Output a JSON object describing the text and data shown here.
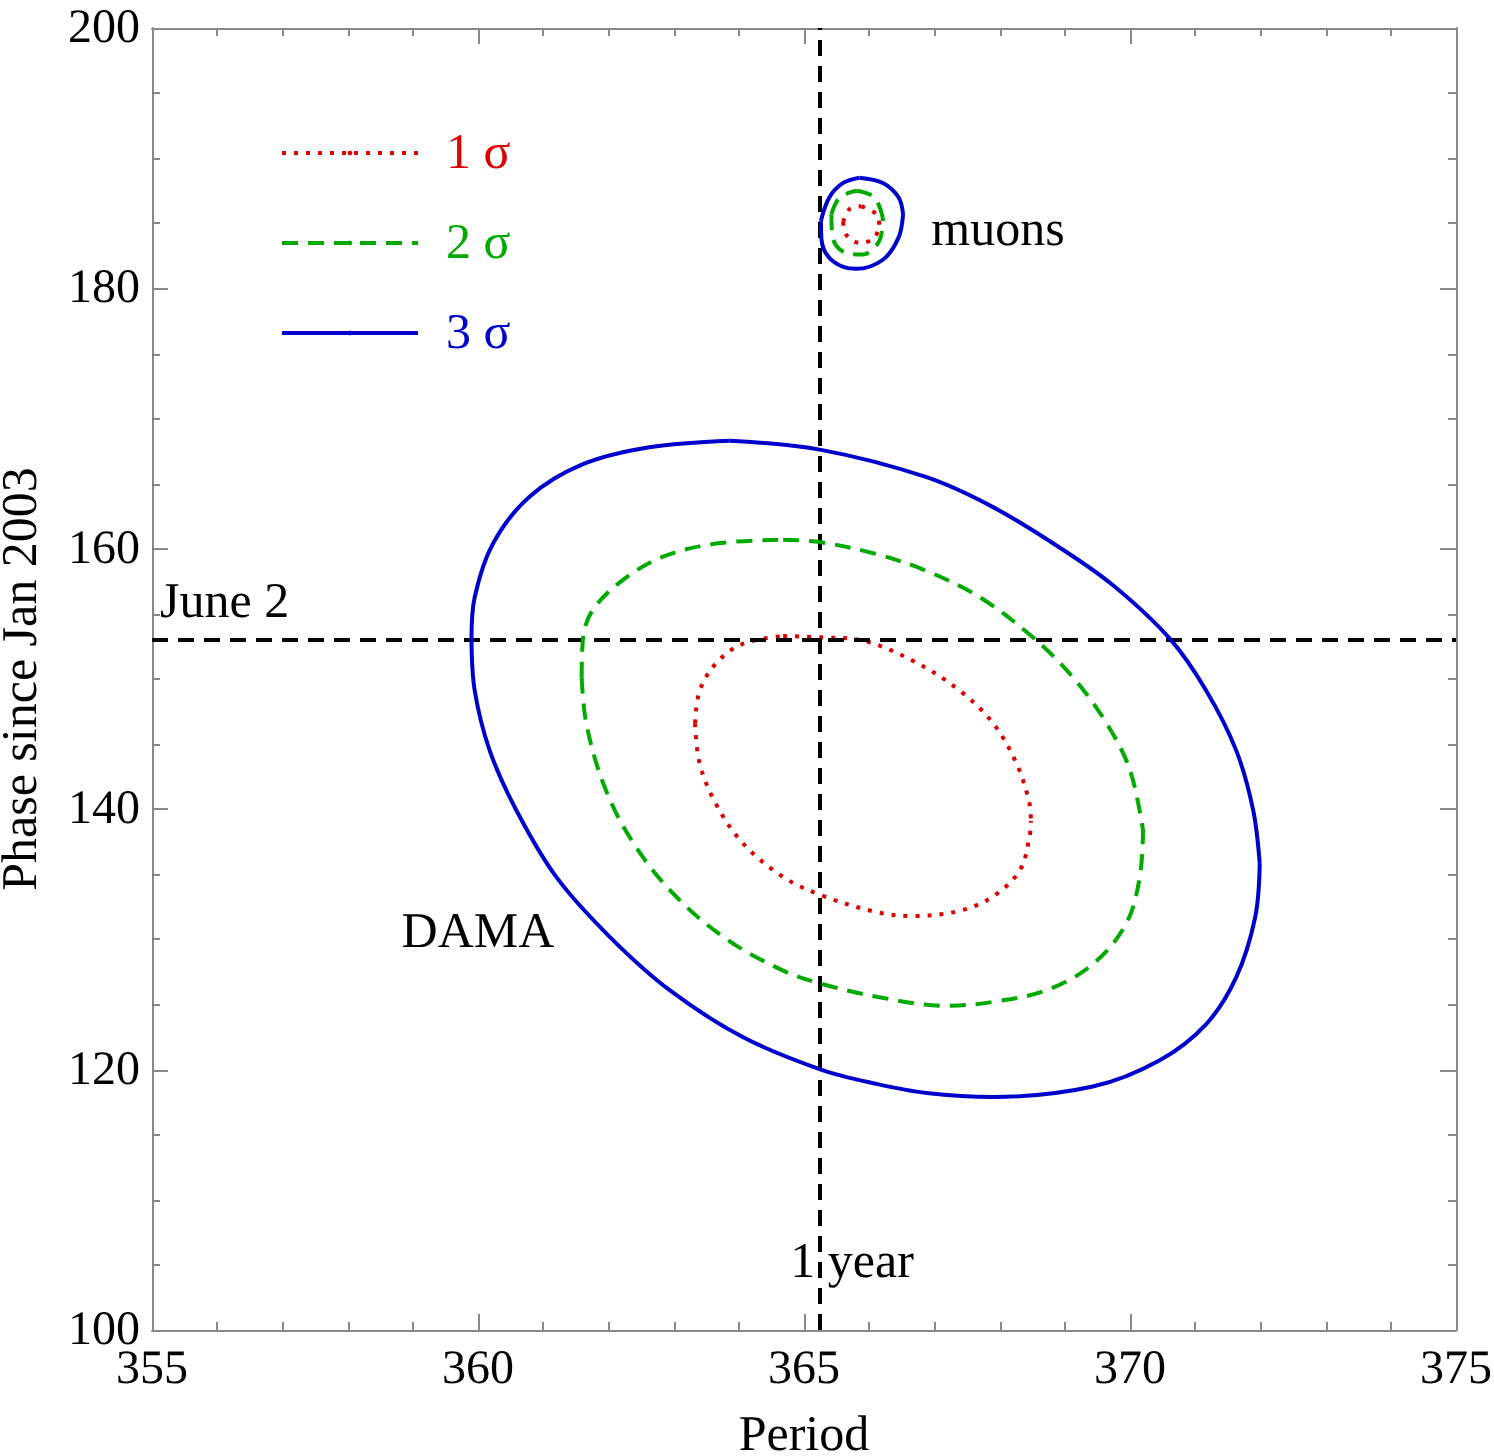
{
  "chart_data": {
    "type": "line",
    "xlabel": "Period",
    "ylabel": "Phase since Jan 2003",
    "xlim": [
      355,
      375
    ],
    "xticks": [
      355,
      {
        "value": 356,
        "label": null
      },
      {
        "value": 357,
        "label": null
      },
      {
        "value": 358,
        "label": null
      },
      {
        "value": 359,
        "label": null
      },
      360,
      {
        "value": 361,
        "label": null
      },
      {
        "value": 362,
        "label": null
      },
      {
        "value": 363,
        "label": null
      },
      {
        "value": 364,
        "label": null
      },
      365,
      {
        "value": 366,
        "label": null
      },
      {
        "value": 367,
        "label": null
      },
      {
        "value": 368,
        "label": null
      },
      {
        "value": 369,
        "label": null
      },
      370,
      {
        "value": 371,
        "label": null
      },
      {
        "value": 372,
        "label": null
      },
      {
        "value": 373,
        "label": null
      },
      {
        "value": 374,
        "label": null
      },
      375
    ],
    "ylim": [
      100,
      200
    ],
    "yticks": [
      100,
      {
        "value": 105,
        "label": null
      },
      {
        "value": 110,
        "label": null
      },
      {
        "value": 115,
        "label": null
      },
      120,
      {
        "value": 125,
        "label": null
      },
      {
        "value": 130,
        "label": null
      },
      {
        "value": 135,
        "label": null
      },
      140,
      {
        "value": 145,
        "label": null
      },
      {
        "value": 150,
        "label": null
      },
      {
        "value": 155,
        "label": null
      },
      160,
      {
        "value": 165,
        "label": null
      },
      {
        "value": 170,
        "label": null
      },
      {
        "value": 175,
        "label": null
      },
      180,
      {
        "value": 185,
        "label": null
      },
      {
        "value": 190,
        "label": null
      },
      {
        "value": 195,
        "label": null
      },
      200
    ],
    "grid": false,
    "legend": "top left",
    "marker": "none",
    "series": [
      {
        "name": "1 σ",
        "color": "#dd0000",
        "line_style": "dotted",
        "x": [
          363.33,
          363.4,
          363.65,
          364.06,
          364.68
        ],
        "values": [
          146.6,
          149.1,
          151.2,
          152.7,
          153.3
        ]
      },
      {
        "color": "#dd0000",
        "line_style": "dotted",
        "x": [
          364.68,
          365.26,
          365.85,
          366.67,
          367.39,
          367.9,
          368.26,
          368.46,
          368.48
        ],
        "values": [
          153.3,
          153.2,
          153.0,
          151.4,
          149.1,
          146.6,
          143.5,
          140.4,
          139.1
        ]
      },
      {
        "color": "#dd0000",
        "line_style": "dotted",
        "x": [
          363.33,
          363.4,
          363.65,
          364.06,
          364.68,
          365.26,
          366.11,
          366.67,
          367.39,
          367.9,
          368.31,
          368.46,
          368.48
        ],
        "values": [
          146.6,
          143.5,
          140.4,
          137.4,
          134.8,
          133.4,
          132.1,
          131.8,
          132.2,
          133.3,
          135.3,
          137.9,
          139.1
        ]
      },
      {
        "name": "2 σ",
        "color": "#00aa00",
        "line_style": "dashed",
        "x": [
          361.59,
          361.61,
          361.76,
          362.22,
          362.84,
          363.65,
          364.68
        ],
        "values": [
          150.1,
          153.1,
          155.3,
          157.6,
          159.4,
          160.4,
          160.7
        ]
      },
      {
        "color": "#00aa00",
        "line_style": "dashed",
        "x": [
          364.68,
          365.26,
          366.11,
          366.88,
          367.69,
          368.51,
          369.13,
          369.64,
          370.0,
          370.2
        ],
        "values": [
          160.7,
          160.5,
          159.6,
          158.3,
          156.3,
          153.2,
          150.1,
          146.6,
          143.0,
          138.4
        ]
      },
      {
        "color": "#00aa00",
        "line_style": "dashed",
        "x": [
          361.59,
          361.66,
          361.92,
          362.32,
          362.94,
          363.76,
          364.68,
          365.26,
          366.11,
          367.18,
          367.9,
          368.72,
          369.43,
          369.94,
          370.15,
          370.2
        ],
        "values": [
          150.1,
          146.6,
          142.0,
          137.9,
          133.8,
          130.2,
          127.6,
          126.6,
          125.6,
          124.9,
          125.2,
          126.1,
          128.1,
          131.2,
          134.8,
          138.4
        ]
      },
      {
        "name": "3 σ",
        "color": "#0000cc",
        "line_style": "solid",
        "x": [
          359.9,
          359.95,
          360.23,
          360.79,
          361.61,
          362.63,
          363.86
        ],
        "values": [
          153.0,
          156.3,
          160.4,
          164.0,
          166.5,
          167.8,
          168.3
        ]
      },
      {
        "color": "#0000cc",
        "line_style": "solid",
        "x": [
          363.86,
          365.26,
          366.88,
          367.9,
          368.92,
          369.74,
          370.61,
          371.17,
          371.63,
          371.89,
          371.99
        ],
        "values": [
          168.3,
          167.6,
          165.5,
          163.2,
          160.1,
          157.2,
          153.1,
          149.1,
          144.5,
          139.9,
          135.8
        ]
      },
      {
        "color": "#0000cc",
        "line_style": "solid",
        "x": [
          359.9,
          359.95,
          360.18,
          360.59,
          361.2,
          362.02,
          362.94,
          364.06,
          365.26,
          366.11,
          366.88,
          367.9,
          369.43,
          370.45,
          371.17,
          371.63,
          371.92,
          371.99
        ],
        "values": [
          153.0,
          149.1,
          144.5,
          139.9,
          134.8,
          130.2,
          126.1,
          122.5,
          120.0,
          118.9,
          118.2,
          117.9,
          118.7,
          120.7,
          123.5,
          127.1,
          131.7,
          135.8
        ]
      },
      {
        "color": "#dd0000",
        "line_style": "dotted",
        "x": [
          365.6,
          365.7,
          365.88
        ],
        "values": [
          185.1,
          186.1,
          186.3
        ]
      },
      {
        "color": "#dd0000",
        "line_style": "dotted",
        "x": [
          365.88,
          366.11,
          366.16
        ],
        "values": [
          186.3,
          185.7,
          184.7
        ]
      },
      {
        "color": "#dd0000",
        "line_style": "dotted",
        "x": [
          365.6,
          365.65,
          365.85,
          366.06,
          366.16
        ],
        "values": [
          185.1,
          184.1,
          183.5,
          183.8,
          184.7
        ]
      },
      {
        "color": "#00aa00",
        "line_style": "dashed",
        "x": [
          365.42,
          365.55,
          365.8
        ],
        "values": [
          185.7,
          187.0,
          187.5
        ]
      },
      {
        "color": "#00aa00",
        "line_style": "dashed",
        "x": [
          365.8,
          366.08,
          366.21
        ],
        "values": [
          187.5,
          187.0,
          185.4
        ]
      },
      {
        "color": "#00aa00",
        "line_style": "dashed",
        "x": [
          365.42,
          365.44,
          365.65,
          365.9,
          366.16,
          366.21
        ],
        "values": [
          185.7,
          183.9,
          182.7,
          182.6,
          183.7,
          185.4
        ]
      },
      {
        "color": "#0000cc",
        "line_style": "solid",
        "x": [
          365.26,
          365.39,
          365.6,
          365.85
        ],
        "values": [
          185.2,
          187.0,
          188.1,
          188.5
        ]
      },
      {
        "color": "#0000cc",
        "line_style": "solid",
        "x": [
          365.85,
          366.21,
          366.45,
          366.52
        ],
        "values": [
          188.5,
          188.1,
          187.0,
          185.7
        ]
      },
      {
        "color": "#0000cc",
        "line_style": "solid",
        "x": [
          365.26,
          365.27,
          365.44,
          365.8,
          366.21,
          366.45,
          366.52
        ],
        "values": [
          185.2,
          183.7,
          182.1,
          181.5,
          182.2,
          183.9,
          185.7
        ]
      }
    ],
    "ref_lines": [
      {
        "axis": "x",
        "value": 365.25,
        "label": "1 year",
        "color": "#000000",
        "line_style": "dashed"
      },
      {
        "axis": "y",
        "value": 153,
        "label": "June 2",
        "color": "#000000",
        "line_style": "dashed"
      }
    ],
    "annotations": [
      "muons",
      "DAMA"
    ]
  }
}
